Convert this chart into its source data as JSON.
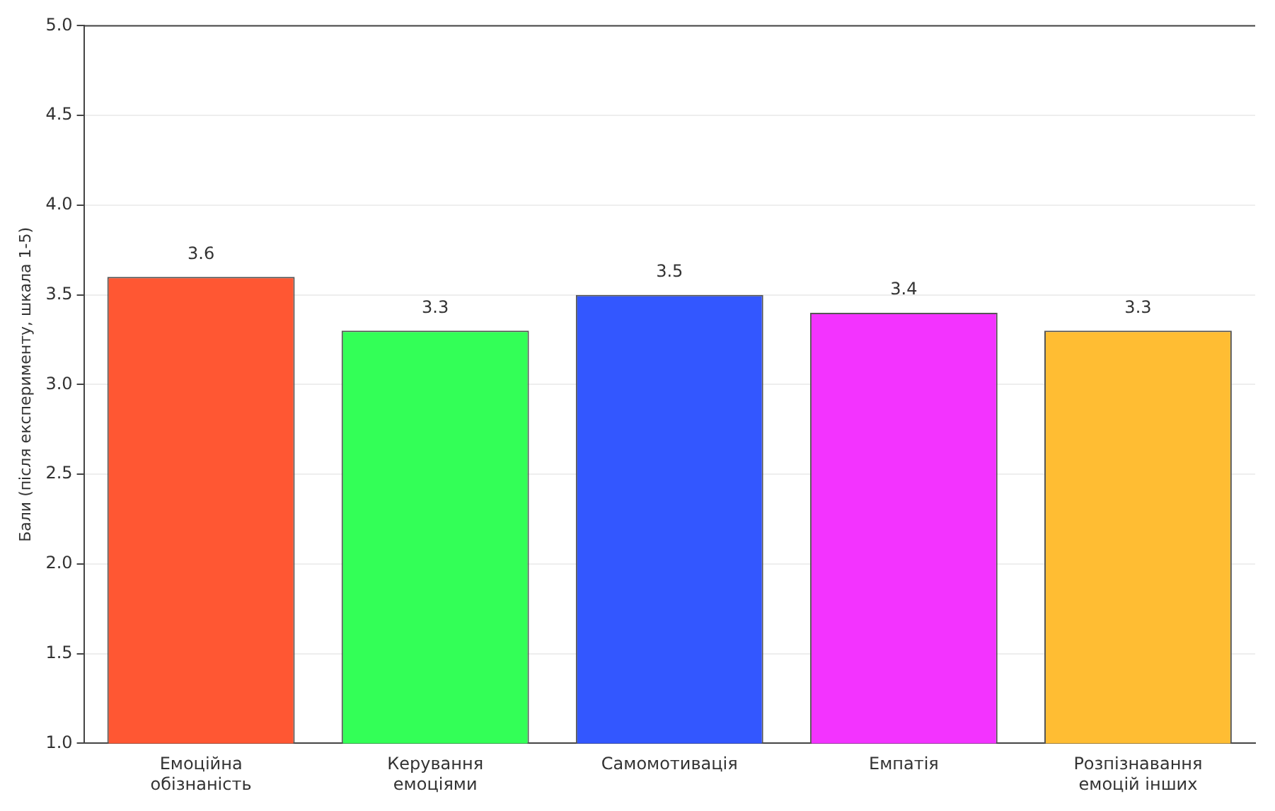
{
  "chart_data": {
    "type": "bar",
    "ylabel": "Бали (після експерименту, шкала 1-5)",
    "categories": [
      "Емоційна обізнаність",
      "Керування емоціями",
      "Самомотивація",
      "Емпатія",
      "Розпізнавання емоцій інших"
    ],
    "values": [
      3.6,
      3.3,
      3.5,
      3.4,
      3.3
    ],
    "colors": [
      "#ff5733",
      "#33ff57",
      "#3357ff",
      "#f333ff",
      "#ffbd33"
    ],
    "ylim": [
      1,
      5
    ],
    "yticks": [
      {
        "value": 1,
        "label": "1.0"
      },
      {
        "value": 1.5,
        "label": "1.5"
      },
      {
        "value": 2,
        "label": "2.0"
      },
      {
        "value": 2.5,
        "label": "2.5"
      },
      {
        "value": 3,
        "label": "3.0"
      },
      {
        "value": 3.5,
        "label": "3.5"
      },
      {
        "value": 4,
        "label": "4.0"
      },
      {
        "value": 4.5,
        "label": "4.5"
      },
      {
        "value": 5,
        "label": "5.0"
      }
    ],
    "grid": "y",
    "data_labels": true
  }
}
